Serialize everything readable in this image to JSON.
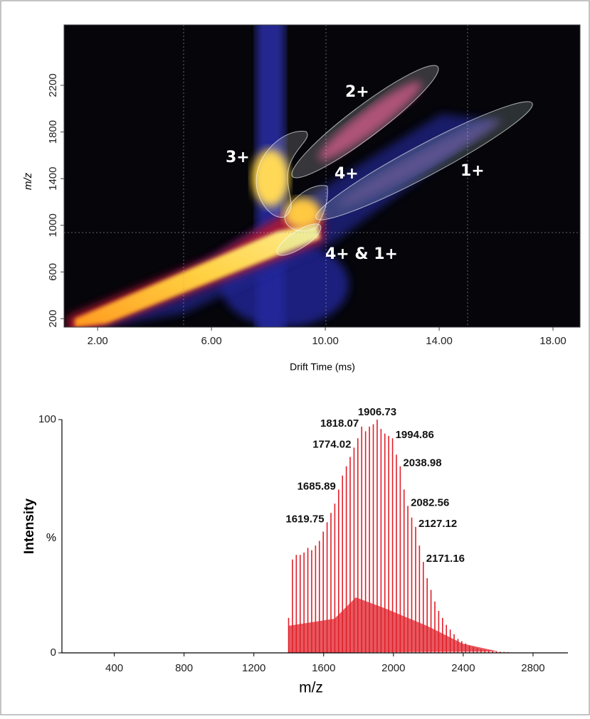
{
  "chart_data": [
    {
      "type": "heatmap",
      "xlabel": "Drift Time (ms)",
      "ylabel": "m/z",
      "xlim": [
        0.82,
        18.95
      ],
      "ylim": [
        127,
        2718
      ],
      "xticks": [
        {
          "value": 2,
          "label": "2.00"
        },
        {
          "value": 6,
          "label": "6.00"
        },
        {
          "value": 10,
          "label": "10.00"
        },
        {
          "value": 14,
          "label": "14.00"
        },
        {
          "value": 18,
          "label": "18.00"
        }
      ],
      "yticks": [
        200,
        600,
        1000,
        1400,
        1800,
        2200
      ],
      "annotations": [
        "2+",
        "3+",
        "4+",
        "1+",
        "4+ & 1+"
      ]
    },
    {
      "type": "spectrum",
      "xlabel": "m/z",
      "ylabel": "Intensity",
      "y_unit": "%",
      "color": "#e0202a",
      "xlim": [
        100,
        3000
      ],
      "ylim": [
        0,
        100
      ],
      "xticks": [
        400,
        800,
        1200,
        1600,
        2000,
        2400,
        2800
      ],
      "yticks": [
        0,
        100
      ],
      "x": [
        1399.2,
        1421.3,
        1443.3,
        1465.4,
        1487.4,
        1509.5,
        1531.5,
        1553.6,
        1575.6,
        1597.7,
        1619.75,
        1641.8,
        1663.8,
        1685.89,
        1707.9,
        1730.0,
        1752.0,
        1774.02,
        1796.0,
        1818.07,
        1840.2,
        1862.4,
        1884.5,
        1906.73,
        1928.8,
        1950.8,
        1972.8,
        1994.86,
        2016.9,
        2038.98,
        2060.8,
        2082.56,
        2104.8,
        2127.12,
        2149.1,
        2171.16,
        2193.2,
        2215.2,
        2237.3,
        2259.3,
        2281.4,
        2303.4,
        2325.5,
        2347.5,
        2369.6,
        2391.6,
        2413.7,
        2435.7,
        2457.8,
        2479.8,
        2501.9,
        2523.9,
        2546.0,
        2568.0,
        2590.1,
        2612.1,
        2634.2,
        2656.2
      ],
      "values": [
        15,
        40,
        42,
        42,
        43,
        45,
        44,
        46,
        48,
        52,
        56,
        60,
        64,
        70,
        76,
        80,
        84,
        88,
        92,
        97,
        95,
        97,
        98,
        100,
        96,
        94,
        93,
        92,
        85,
        80,
        70,
        63,
        58,
        54,
        46,
        39,
        32,
        27,
        22,
        18,
        15,
        12,
        10,
        8,
        6,
        5,
        4,
        3,
        2.5,
        2,
        1.5,
        1.2,
        1,
        0.8,
        0.6,
        0.5,
        0.4,
        0.3
      ],
      "labeled_peaks": [
        1906.73,
        1818.07,
        1994.86,
        1774.02,
        2038.98,
        1685.89,
        2082.56,
        1619.75,
        2127.12,
        2171.16
      ]
    }
  ]
}
